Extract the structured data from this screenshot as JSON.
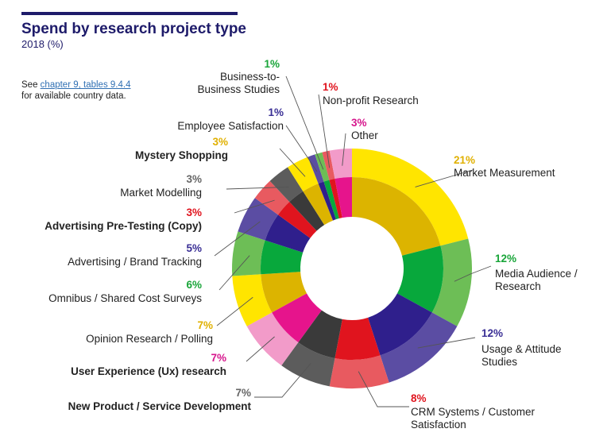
{
  "header": {
    "title": "Spend by research project type",
    "subtitle": "2018 (%)"
  },
  "note": {
    "prefix": "See ",
    "link_text": "chapter 9, tables 9.4.4",
    "suffix": " for available country data."
  },
  "chart_data": {
    "type": "pie",
    "style": "donut",
    "title": "Spend by research project type",
    "subtitle": "2018 (%)",
    "unit": "%",
    "slices": [
      {
        "label": "Market Measurement",
        "value": 21,
        "pct_text": "21%",
        "outer": "#ffe500",
        "inner": "#dcb400",
        "pct_color": "#e0b000"
      },
      {
        "label": "Media Audience / Research",
        "value": 12,
        "pct_text": "12%",
        "outer": "#6dbe56",
        "inner": "#08a83c",
        "pct_color": "#19a539"
      },
      {
        "label": "Usage & Attitude Studies",
        "value": 12,
        "pct_text": "12%",
        "outer": "#5b4da3",
        "inner": "#2f1f8c",
        "pct_color": "#3a2f95"
      },
      {
        "label": "CRM Systems / Customer Satisfaction",
        "value": 8,
        "pct_text": "8%",
        "outer": "#e85a60",
        "inner": "#e0141e",
        "pct_color": "#e0141e"
      },
      {
        "label": "New Product / Service Development",
        "value": 7,
        "pct_text": "7%",
        "outer": "#5c5c5c",
        "inner": "#3a3a3a",
        "pct_color": "#666666"
      },
      {
        "label": "User Experience (Ux) research",
        "value": 7,
        "pct_text": "7%",
        "outer": "#f29bc9",
        "inner": "#e6148c",
        "pct_color": "#d6168c"
      },
      {
        "label": "Opinion Research / Polling",
        "value": 7,
        "pct_text": "7%",
        "outer": "#ffe500",
        "inner": "#dcb400",
        "pct_color": "#e0b000"
      },
      {
        "label": "Omnibus / Shared Cost Surveys",
        "value": 6,
        "pct_text": "6%",
        "outer": "#6dbe56",
        "inner": "#08a83c",
        "pct_color": "#19a539"
      },
      {
        "label": "Advertising / Brand Tracking",
        "value": 5,
        "pct_text": "5%",
        "outer": "#5b4da3",
        "inner": "#2f1f8c",
        "pct_color": "#3a2f95"
      },
      {
        "label": "Advertising Pre-Testing (Copy)",
        "value": 3,
        "pct_text": "3%",
        "outer": "#e85a60",
        "inner": "#e0141e",
        "pct_color": "#e0141e"
      },
      {
        "label": "Market Modelling",
        "value": 3,
        "pct_text": "3%",
        "outer": "#5c5c5c",
        "inner": "#3a3a3a",
        "pct_color": "#666666"
      },
      {
        "label": "Mystery Shopping",
        "value": 3,
        "pct_text": "3%",
        "outer": "#ffe500",
        "inner": "#dcb400",
        "pct_color": "#e0b000"
      },
      {
        "label": "Employee Satisfaction",
        "value": 1,
        "pct_text": "1%",
        "outer": "#5b4da3",
        "inner": "#2f1f8c",
        "pct_color": "#3a2f95"
      },
      {
        "label": "Business-to-Business Studies",
        "value": 1,
        "pct_text": "1%",
        "outer": "#6dbe56",
        "inner": "#08a83c",
        "pct_color": "#19a539"
      },
      {
        "label": "Non-profit Research",
        "value": 1,
        "pct_text": "1%",
        "outer": "#e85a60",
        "inner": "#e0141e",
        "pct_color": "#e0141e"
      },
      {
        "label": "Other",
        "value": 3,
        "pct_text": "3%",
        "outer": "#f29bc9",
        "inner": "#e6148c",
        "pct_color": "#d6168c"
      }
    ]
  }
}
